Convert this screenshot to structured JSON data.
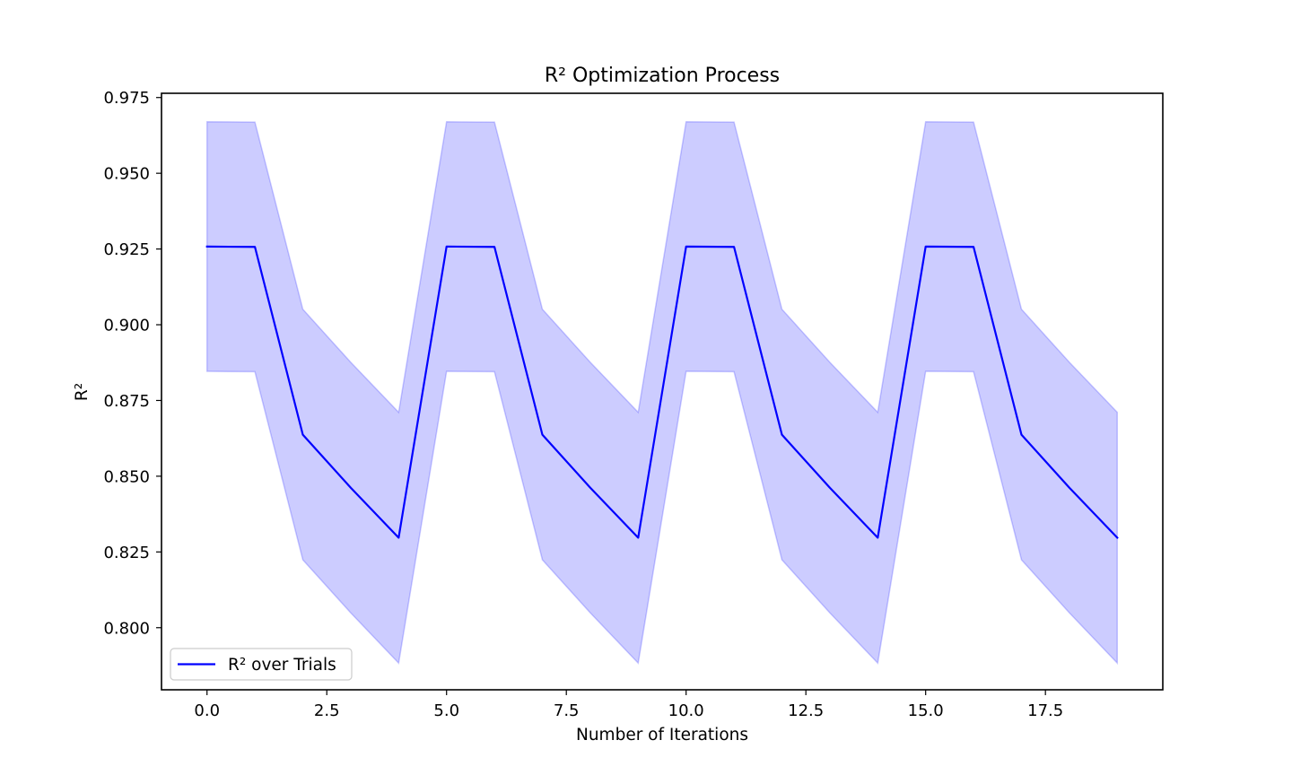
{
  "chart_data": {
    "type": "line",
    "title": "R² Optimization Process",
    "xlabel": "Number of Iterations",
    "ylabel": "R²",
    "xlim": [
      -0.95,
      19.95
    ],
    "ylim": [
      0.7795,
      0.9764
    ],
    "x_ticks": [
      0.0,
      2.5,
      5.0,
      7.5,
      10.0,
      12.5,
      15.0,
      17.5
    ],
    "x_tick_labels": [
      "0.0",
      "2.5",
      "5.0",
      "7.5",
      "10.0",
      "12.5",
      "15.0",
      "17.5"
    ],
    "y_ticks": [
      0.8,
      0.825,
      0.85,
      0.875,
      0.9,
      0.925,
      0.95,
      0.975
    ],
    "y_tick_labels": [
      "0.800",
      "0.825",
      "0.850",
      "0.875",
      "0.900",
      "0.925",
      "0.950",
      "0.975"
    ],
    "grid": false,
    "legend_position": "lower-left",
    "series": [
      {
        "name": "R² over Trials",
        "color": "#0000ff",
        "x": [
          0,
          1,
          2,
          3,
          4,
          5,
          6,
          7,
          8,
          9,
          10,
          11,
          12,
          13,
          14,
          15,
          16,
          17,
          18,
          19
        ],
        "values": [
          0.9258,
          0.9257,
          0.8637,
          0.8462,
          0.8297,
          0.9258,
          0.9257,
          0.8637,
          0.8462,
          0.8297,
          0.9258,
          0.9257,
          0.8637,
          0.8462,
          0.8297,
          0.9258,
          0.9257,
          0.8637,
          0.8462,
          0.8297
        ],
        "band_upper": [
          0.967,
          0.9669,
          0.9051,
          0.8876,
          0.8711,
          0.967,
          0.9669,
          0.9051,
          0.8876,
          0.8711,
          0.967,
          0.9669,
          0.9051,
          0.8876,
          0.8711,
          0.967,
          0.9669,
          0.9051,
          0.8876,
          0.8711
        ],
        "band_lower": [
          0.8846,
          0.8845,
          0.8224,
          0.8049,
          0.7883,
          0.8846,
          0.8845,
          0.8224,
          0.8049,
          0.7883,
          0.8846,
          0.8845,
          0.8224,
          0.8049,
          0.7883,
          0.8846,
          0.8845,
          0.8224,
          0.8049,
          0.7883
        ],
        "band_color": "#0000ff"
      }
    ]
  }
}
